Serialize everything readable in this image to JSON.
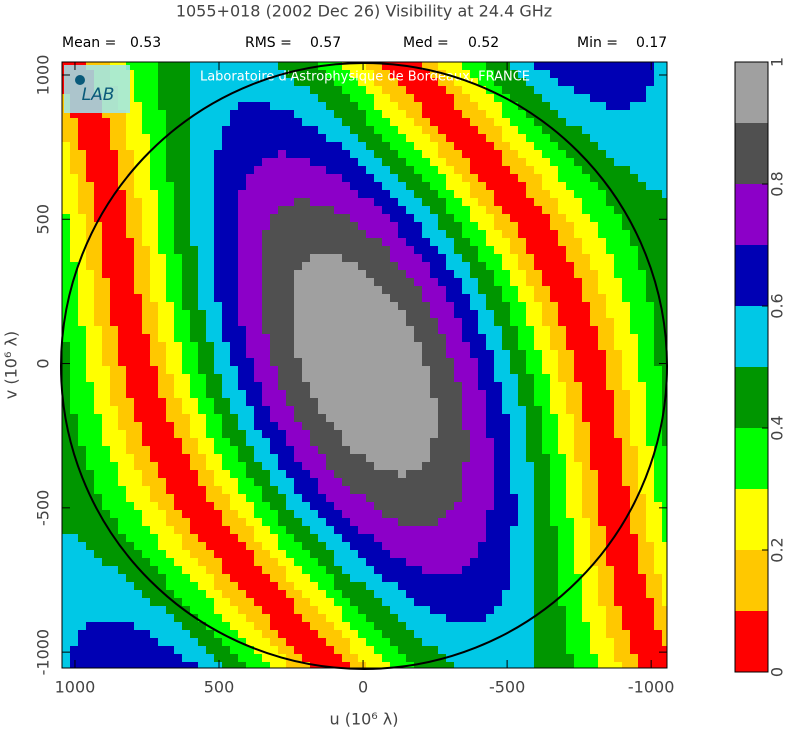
{
  "chart_data": {
    "type": "contour",
    "title": "1055+018  (2002 Dec 26)   Visibility at 24.4 GHz",
    "stats": [
      {
        "label": "Mean =",
        "value": 0.53
      },
      {
        "label": "RMS =",
        "value": 0.57
      },
      {
        "label": "Med =",
        "value": 0.52
      },
      {
        "label": "Min =",
        "value": 0.17
      }
    ],
    "annotation": "Laboratoire d'Astrophysique de Bordeaux, FRANCE",
    "logo": "LAB",
    "x_label": "u  (10⁶ λ)",
    "y_label": "v  (10⁶ λ)",
    "xlim": [
      1045,
      -1055
    ],
    "xticks": [
      1000,
      500,
      0,
      -500,
      -1000
    ],
    "ylim": [
      -1055,
      1045
    ],
    "yticks": [
      -1000,
      -500,
      0,
      500,
      1000
    ],
    "colorbar": {
      "levels": [
        0,
        0.1,
        0.2,
        0.3,
        0.4,
        0.5,
        0.6,
        0.7,
        0.8,
        0.9,
        1
      ],
      "colors": [
        "#ff0000",
        "#ffc800",
        "#ffff00",
        "#00ff00",
        "#009600",
        "#00c8e6",
        "#0000b4",
        "#8c00c8",
        "#505050",
        "#a0a0a0"
      ],
      "ticks": [
        0,
        0.2,
        0.4,
        0.6,
        0.8,
        1
      ]
    }
  }
}
